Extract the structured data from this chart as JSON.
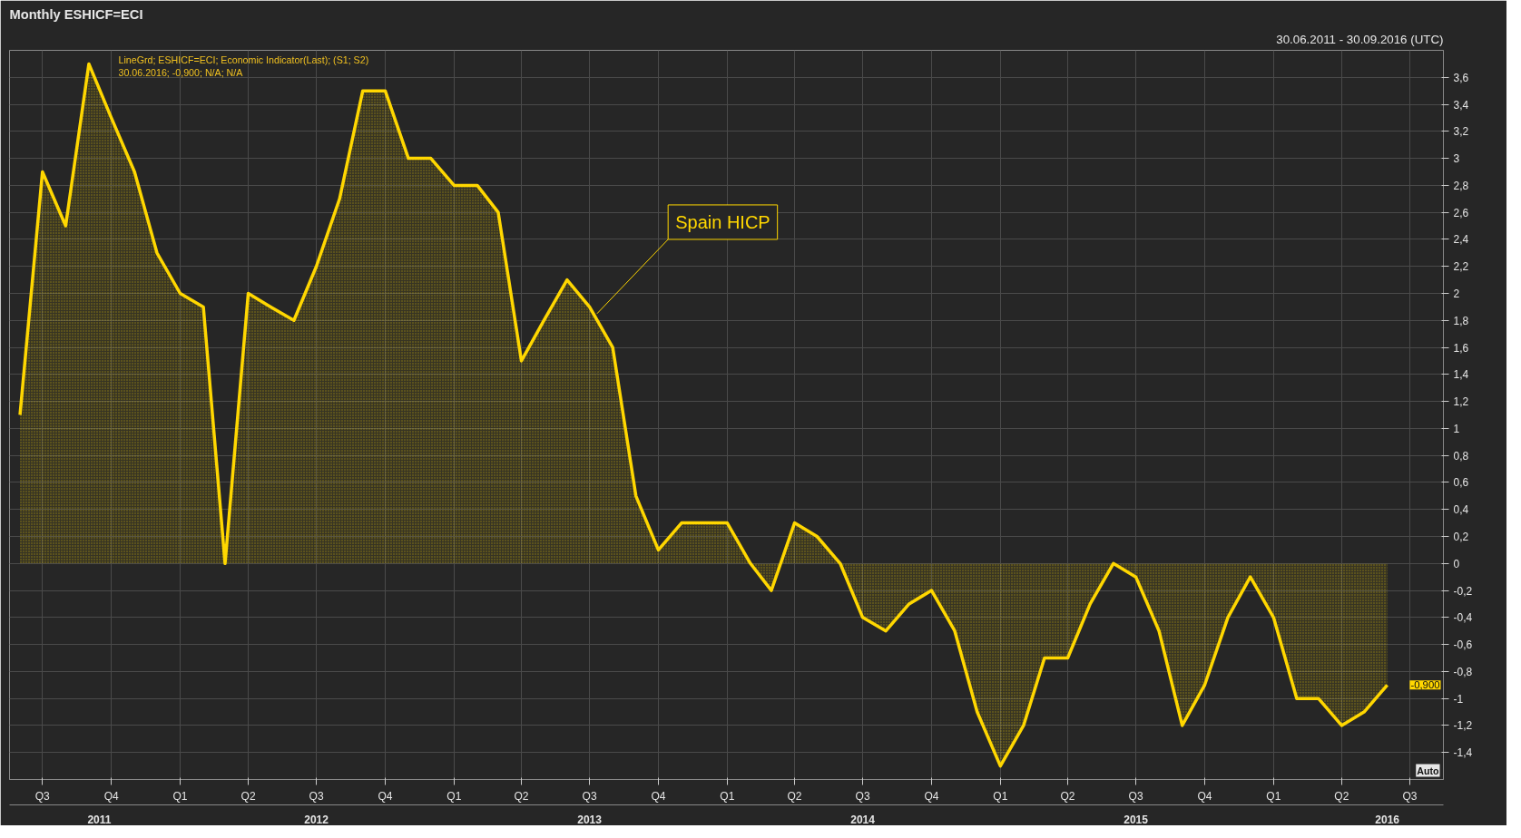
{
  "chart_data": {
    "type": "area",
    "title": "Monthly ESHICF=ECI",
    "subtitle": "30.06.2011 - 30.09.2016 (UTC)",
    "x": [
      "2011-06",
      "2011-07",
      "2011-08",
      "2011-09",
      "2011-10",
      "2011-11",
      "2011-12",
      "2012-01",
      "2012-02",
      "2012-03",
      "2012-04",
      "2012-05",
      "2012-06",
      "2012-07",
      "2012-08",
      "2012-09",
      "2012-10",
      "2012-11",
      "2012-12",
      "2013-01",
      "2013-02",
      "2013-03",
      "2013-04",
      "2013-05",
      "2013-06",
      "2013-07",
      "2013-08",
      "2013-09",
      "2013-10",
      "2013-11",
      "2013-12",
      "2014-01",
      "2014-02",
      "2014-03",
      "2014-04",
      "2014-05",
      "2014-06",
      "2014-07",
      "2014-08",
      "2014-09",
      "2014-10",
      "2014-11",
      "2014-12",
      "2015-01",
      "2015-02",
      "2015-03",
      "2015-04",
      "2015-05",
      "2015-06",
      "2015-07",
      "2015-08",
      "2015-09",
      "2015-10",
      "2015-11",
      "2015-12",
      "2016-01",
      "2016-02",
      "2016-03",
      "2016-04",
      "2016-05",
      "2016-06"
    ],
    "series": [
      {
        "name": "Spain HICP",
        "color": "#ffd700",
        "values": [
          1.1,
          2.9,
          2.5,
          3.7,
          3.3,
          2.9,
          2.3,
          2.0,
          1.9,
          0.0,
          2.0,
          1.9,
          1.8,
          2.2,
          2.7,
          3.5,
          3.5,
          3.0,
          3.0,
          2.8,
          2.8,
          2.6,
          1.5,
          1.8,
          2.1,
          1.9,
          1.6,
          0.5,
          0.1,
          0.3,
          0.3,
          0.3,
          0.0,
          -0.2,
          0.3,
          0.2,
          0.0,
          -0.4,
          -0.5,
          -0.3,
          -0.2,
          -0.5,
          -1.1,
          -1.5,
          -1.2,
          -0.7,
          -0.7,
          -0.3,
          0.0,
          -0.1,
          -0.5,
          -1.2,
          -0.9,
          -0.4,
          -0.1,
          -0.4,
          -1.0,
          -1.0,
          -1.2,
          -1.1,
          -0.9
        ]
      }
    ],
    "xlim": [
      "2011-05-18",
      "2016-08-15"
    ],
    "xticks": [
      {
        "value": "2011-07",
        "label": "Q3"
      },
      {
        "value": "2011-10",
        "label": "Q4"
      },
      {
        "value": "2012-01",
        "label": "Q1"
      },
      {
        "value": "2012-04",
        "label": "Q2"
      },
      {
        "value": "2012-07",
        "label": "Q3"
      },
      {
        "value": "2012-10",
        "label": "Q4"
      },
      {
        "value": "2013-01",
        "label": "Q1"
      },
      {
        "value": "2013-04",
        "label": "Q2"
      },
      {
        "value": "2013-07",
        "label": "Q3"
      },
      {
        "value": "2013-10",
        "label": "Q4"
      },
      {
        "value": "2014-01",
        "label": "Q1"
      },
      {
        "value": "2014-04",
        "label": "Q2"
      },
      {
        "value": "2014-07",
        "label": "Q3"
      },
      {
        "value": "2014-10",
        "label": "Q4"
      },
      {
        "value": "2015-01",
        "label": "Q1"
      },
      {
        "value": "2015-04",
        "label": "Q2"
      },
      {
        "value": "2015-07",
        "label": "Q3"
      },
      {
        "value": "2015-10",
        "label": "Q4"
      },
      {
        "value": "2016-01",
        "label": "Q1"
      },
      {
        "value": "2016-04",
        "label": "Q2"
      },
      {
        "value": "2016-07",
        "label": "Q3"
      }
    ],
    "x2lim": [
      "2011-05-18",
      "2016-08-15"
    ],
    "x2ticks": [
      {
        "value": "2011-09-15",
        "label": "2011"
      },
      {
        "value": "2012-07",
        "label": "2012"
      },
      {
        "value": "2013-07",
        "label": "2013"
      },
      {
        "value": "2014-07",
        "label": "2014"
      },
      {
        "value": "2015-07",
        "label": "2015"
      },
      {
        "value": "2016-06",
        "label": "2016"
      }
    ],
    "ylim": [
      -1.6,
      3.8
    ],
    "yticks": [
      {
        "value": -1.4,
        "label": "-1,4"
      },
      {
        "value": -1.2,
        "label": "-1,2"
      },
      {
        "value": -1,
        "label": "-1"
      },
      {
        "value": -0.8,
        "label": "-0,8"
      },
      {
        "value": -0.6,
        "label": "-0,6"
      },
      {
        "value": -0.4,
        "label": "-0,4"
      },
      {
        "value": -0.2,
        "label": "-0,2"
      },
      0,
      {
        "value": 0.2,
        "label": "0,2"
      },
      {
        "value": 0.4,
        "label": "0,4"
      },
      {
        "value": 0.6,
        "label": "0,6"
      },
      {
        "value": 0.8,
        "label": "0,8"
      },
      1,
      {
        "value": 1.2,
        "label": "1,2"
      },
      {
        "value": 1.4,
        "label": "1,4"
      },
      {
        "value": 1.6,
        "label": "1,6"
      },
      {
        "value": 1.8,
        "label": "1,8"
      },
      2,
      {
        "value": 2.2,
        "label": "2,2"
      },
      {
        "value": 2.4,
        "label": "2,4"
      },
      {
        "value": 2.6,
        "label": "2,6"
      },
      {
        "value": 2.8,
        "label": "2,8"
      },
      3,
      {
        "value": 3.2,
        "label": "3,2"
      },
      {
        "value": 3.4,
        "label": "3,4"
      },
      {
        "value": 3.6,
        "label": "3,6"
      }
    ],
    "grid": true,
    "marker": "none",
    "line_style": "solid",
    "annotations": [
      "LineGrd; ESHICF=ECI; Economic Indicator(Last); (S1; S2)",
      "30.06.2016; -0,900; N/A; N/A",
      "-0,900",
      "Auto"
    ]
  }
}
